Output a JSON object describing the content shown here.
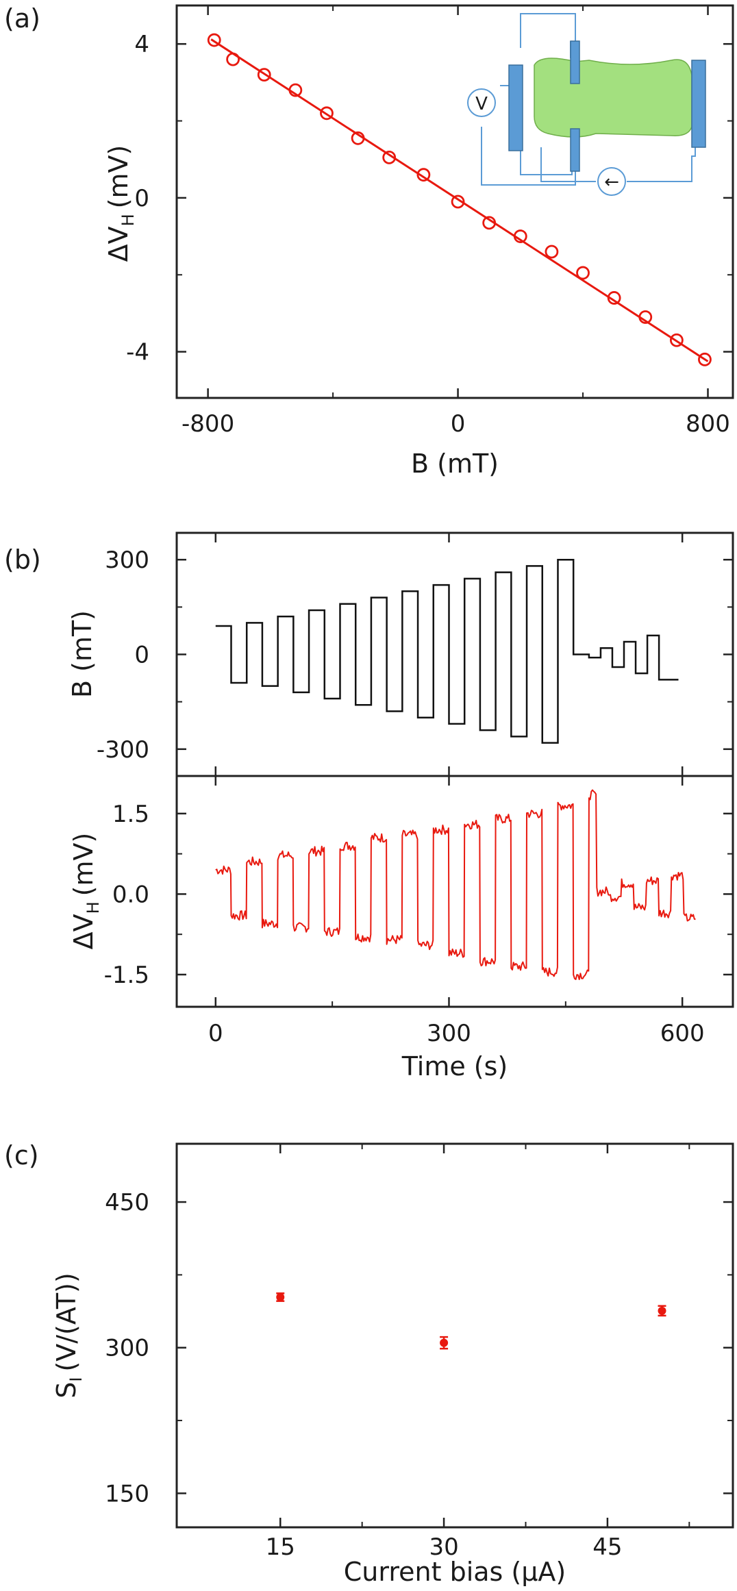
{
  "colors": {
    "axis": "#222222",
    "fit": "#e8190f",
    "data": "#e8190f",
    "bfield": "#111111",
    "inset_sample": "#a3e07f",
    "inset_contact": "#5b9bd5",
    "inset_wire": "#5b9bd5"
  },
  "chart_data": [
    {
      "id": "a",
      "type": "scatter",
      "panel_label": "(a)",
      "xlabel": "B (mT)",
      "ylabel": "ΔV",
      "ylabel_sub": "H",
      "ylabel_unit": "(mV)",
      "xlim": [
        -900,
        880
      ],
      "ylim": [
        -5.2,
        5.0
      ],
      "xticks": [
        -800,
        0,
        800
      ],
      "xtick_labels": [
        "-800",
        "0",
        "800"
      ],
      "yticks": [
        4,
        0,
        -4
      ],
      "ytick_labels": [
        "4",
        "0",
        "-4"
      ],
      "x": [
        -780,
        -720,
        -620,
        -520,
        -420,
        -320,
        -220,
        -110,
        0,
        100,
        200,
        300,
        400,
        500,
        600,
        700,
        790
      ],
      "y": [
        4.1,
        3.6,
        3.2,
        2.8,
        2.2,
        1.55,
        1.05,
        0.6,
        -0.1,
        -0.65,
        -1.0,
        -1.4,
        -1.95,
        -2.6,
        -3.1,
        -3.7,
        -4.2
      ],
      "fit": {
        "x": [
          -790,
          800
        ],
        "y": [
          4.12,
          -4.25
        ]
      },
      "inset": {
        "voltmeter_label": "V",
        "current_symbol": "←"
      }
    },
    {
      "id": "b_top",
      "type": "line",
      "panel_label": "(b)",
      "ylabel": "B (mT)",
      "xlim": [
        -50,
        665
      ],
      "ylim": [
        -385,
        385
      ],
      "yticks": [
        300,
        0,
        -300
      ],
      "ytick_labels": [
        "300",
        "0",
        "-300"
      ],
      "series": [
        {
          "name": "B",
          "amplitudes": [
            90,
            100,
            120,
            140,
            160,
            180,
            200,
            220,
            240,
            260,
            280,
            300
          ],
          "start": 0,
          "step": 20,
          "tail": [
            10,
            10,
            20,
            40,
            60,
            80
          ]
        }
      ]
    },
    {
      "id": "b_bottom",
      "type": "line",
      "xlabel": "Time (s)",
      "ylabel": "ΔV",
      "ylabel_sub": "H",
      "ylabel_unit": "(mV)",
      "xlim": [
        -50,
        665
      ],
      "ylim": [
        -2.1,
        2.2
      ],
      "xticks": [
        0,
        300,
        600
      ],
      "xtick_labels": [
        "0",
        "300",
        "600"
      ],
      "yticks": [
        1.5,
        0.0,
        -1.5
      ],
      "ytick_labels": [
        "1.5",
        "0.0",
        "-1.5"
      ],
      "series": [
        {
          "name": "ΔVH",
          "high": [
            0.55,
            0.6,
            0.72,
            0.8,
            0.9,
            1.05,
            1.1,
            1.2,
            1.3,
            1.4,
            1.5,
            1.65,
            1.8
          ],
          "low": [
            -0.4,
            -0.55,
            -0.62,
            -0.7,
            -0.8,
            -0.85,
            -0.95,
            -1.1,
            -1.25,
            -1.35,
            -1.45,
            -1.5,
            -1.55
          ]
        }
      ]
    },
    {
      "id": "c",
      "type": "scatter",
      "panel_label": "(c)",
      "xlabel": "Current bias (μA)",
      "ylabel": "S",
      "ylabel_sub": "I",
      "ylabel_unit": "(V/(AT))",
      "xlim": [
        5.5,
        56.5
      ],
      "ylim": [
        115,
        510
      ],
      "xticks": [
        15,
        30,
        45
      ],
      "xtick_labels": [
        "15",
        "30",
        "45"
      ],
      "yticks": [
        450,
        300,
        150
      ],
      "ytick_labels": [
        "450",
        "300",
        "150"
      ],
      "x": [
        15,
        30,
        50
      ],
      "y": [
        352,
        305,
        338
      ],
      "yerr": [
        4,
        6,
        5
      ]
    }
  ]
}
